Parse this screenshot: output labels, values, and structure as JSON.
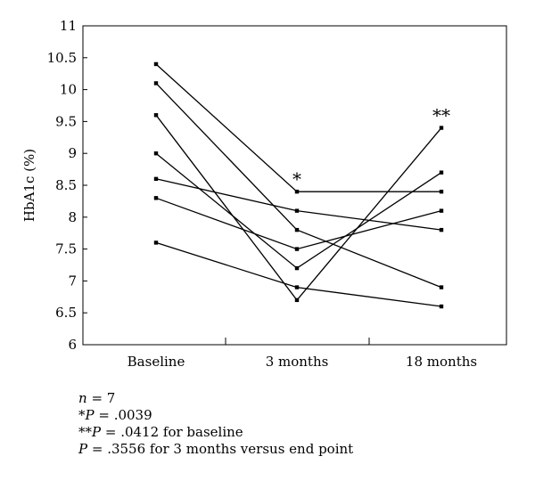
{
  "chart_data": {
    "type": "line",
    "title": "",
    "xlabel": "",
    "ylabel": "HbA1c (%)",
    "categories": [
      "Baseline",
      "3 months",
      "18 months"
    ],
    "yticks": [
      "6",
      "6.5",
      "7",
      "7.5",
      "8",
      "8.5",
      "9",
      "9.5",
      "10",
      "10.5",
      "11"
    ],
    "ylim": [
      6,
      11
    ],
    "grid": false,
    "legend": "none",
    "series": [
      {
        "values": [
          10.4,
          8.4,
          8.4
        ]
      },
      {
        "values": [
          10.1,
          7.8,
          6.9
        ]
      },
      {
        "values": [
          9.6,
          6.7,
          9.4
        ]
      },
      {
        "values": [
          9.0,
          7.2,
          8.7
        ]
      },
      {
        "values": [
          8.6,
          8.1,
          7.8
        ]
      },
      {
        "values": [
          8.3,
          7.5,
          8.1
        ]
      },
      {
        "values": [
          7.6,
          6.9,
          6.6
        ]
      }
    ],
    "annotations": [
      {
        "text": "*",
        "category": "3 months",
        "y": 8.4
      },
      {
        "text": "**",
        "category": "18 months",
        "y": 9.4
      }
    ]
  },
  "notes": {
    "n_var": "n",
    "n_rest": " = 7",
    "p1_star": "*",
    "p1_var": "P",
    "p1_rest": " = .0039",
    "p2_star": "**",
    "p2_var": "P",
    "p2_rest": " = .0412 for baseline",
    "p3_var": "P",
    "p3_rest": " = .3556 for 3 months versus end point"
  }
}
